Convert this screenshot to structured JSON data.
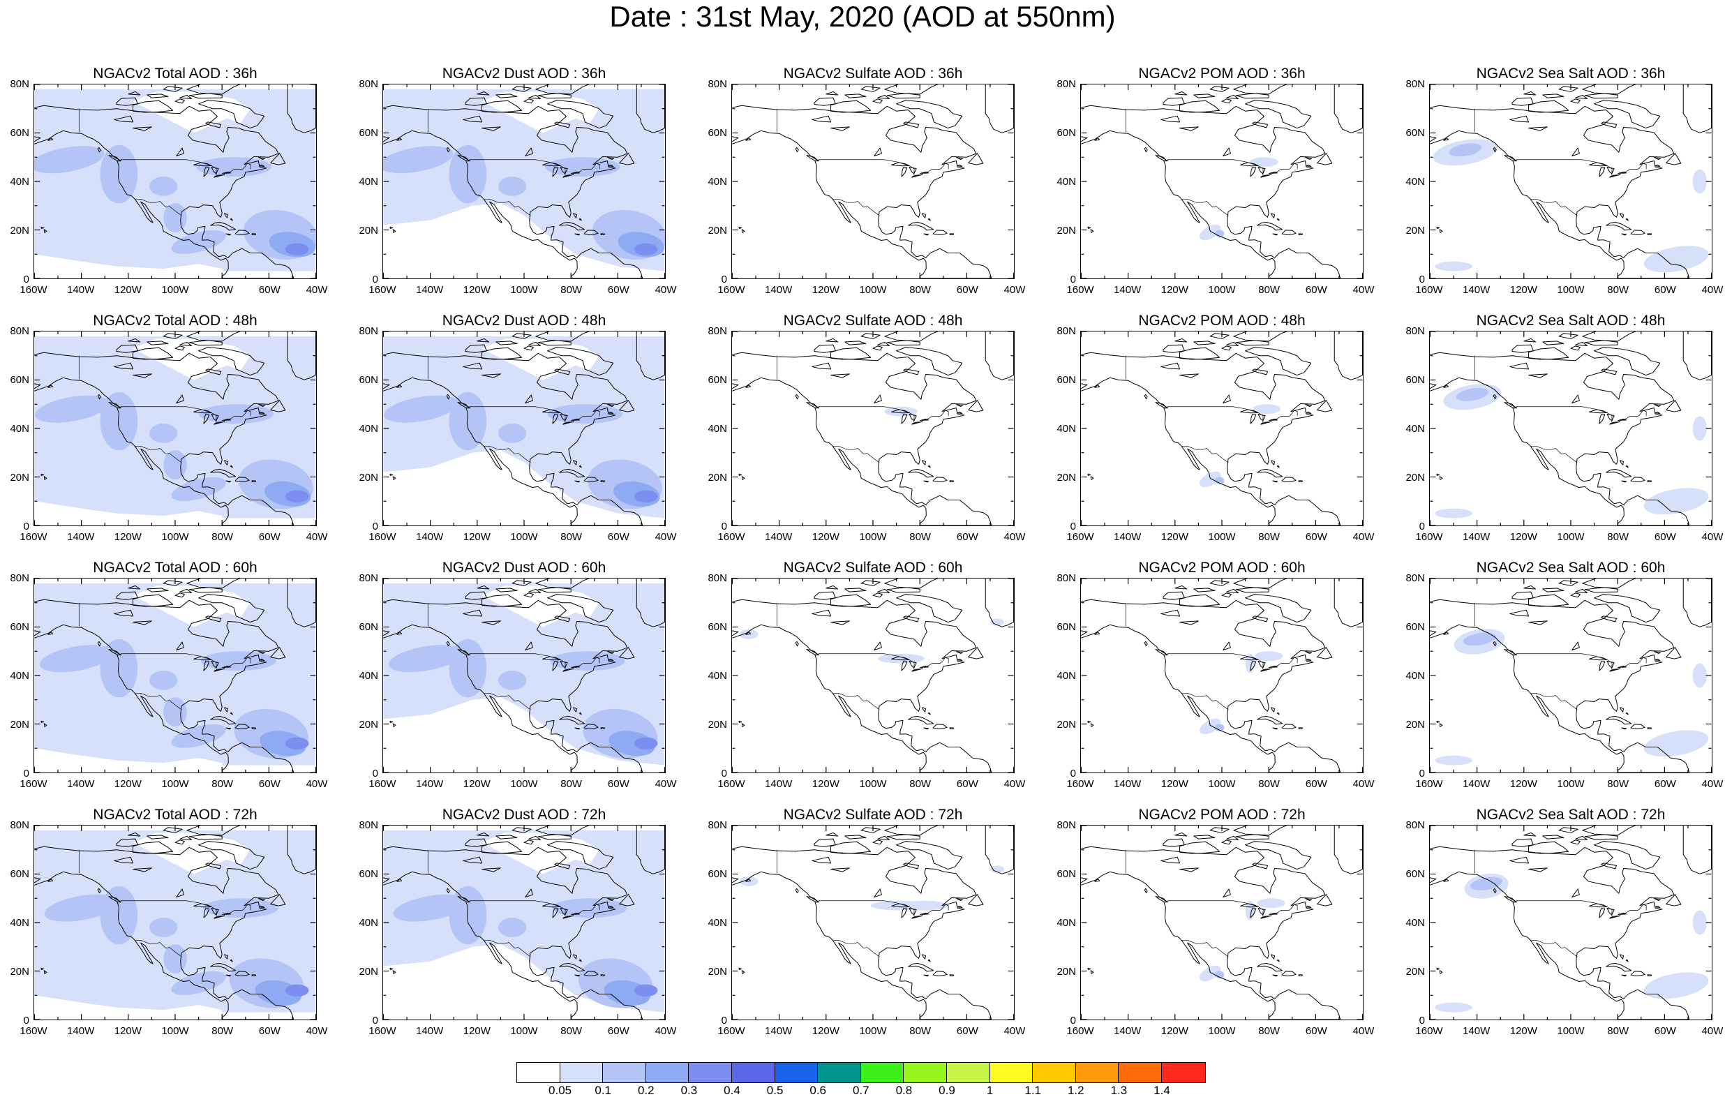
{
  "title": "Date : 31st May, 2020 (AOD at 550nm)",
  "axes": {
    "lat_labels": [
      "80N",
      "60N",
      "40N",
      "20N",
      "0"
    ],
    "lon_labels": [
      "160W",
      "140W",
      "120W",
      "100W",
      "80W",
      "60W",
      "40W"
    ],
    "lat_range": [
      0,
      80
    ],
    "lon_range": [
      -160,
      -40
    ]
  },
  "panels": [
    {
      "title": "NGACv2 Total AOD : 36h",
      "species": "total",
      "forecast_hour": 36
    },
    {
      "title": "NGACv2 Dust AOD : 36h",
      "species": "dust",
      "forecast_hour": 36
    },
    {
      "title": "NGACv2 Sulfate AOD : 36h",
      "species": "sulfate",
      "forecast_hour": 36
    },
    {
      "title": "NGACv2 POM AOD : 36h",
      "species": "pom",
      "forecast_hour": 36
    },
    {
      "title": "NGACv2 Sea Salt AOD : 36h",
      "species": "seasalt",
      "forecast_hour": 36
    },
    {
      "title": "NGACv2 Total AOD : 48h",
      "species": "total",
      "forecast_hour": 48
    },
    {
      "title": "NGACv2 Dust AOD : 48h",
      "species": "dust",
      "forecast_hour": 48
    },
    {
      "title": "NGACv2 Sulfate AOD : 48h",
      "species": "sulfate",
      "forecast_hour": 48
    },
    {
      "title": "NGACv2 POM AOD : 48h",
      "species": "pom",
      "forecast_hour": 48
    },
    {
      "title": "NGACv2 Sea Salt AOD : 48h",
      "species": "seasalt",
      "forecast_hour": 48
    },
    {
      "title": "NGACv2 Total AOD : 60h",
      "species": "total",
      "forecast_hour": 60
    },
    {
      "title": "NGACv2 Dust AOD : 60h",
      "species": "dust",
      "forecast_hour": 60
    },
    {
      "title": "NGACv2 Sulfate AOD : 60h",
      "species": "sulfate",
      "forecast_hour": 60
    },
    {
      "title": "NGACv2 POM AOD : 60h",
      "species": "pom",
      "forecast_hour": 60
    },
    {
      "title": "NGACv2 Sea Salt AOD : 60h",
      "species": "seasalt",
      "forecast_hour": 60
    },
    {
      "title": "NGACv2 Total AOD : 72h",
      "species": "total",
      "forecast_hour": 72
    },
    {
      "title": "NGACv2 Dust AOD : 72h",
      "species": "dust",
      "forecast_hour": 72
    },
    {
      "title": "NGACv2 Sulfate AOD : 72h",
      "species": "sulfate",
      "forecast_hour": 72
    },
    {
      "title": "NGACv2 POM AOD : 72h",
      "species": "pom",
      "forecast_hour": 72
    },
    {
      "title": "NGACv2 Sea Salt  AOD : 72h",
      "species": "seasalt",
      "forecast_hour": 72
    }
  ],
  "colorbar": {
    "colors": [
      "#ffffff",
      "#d6e0fb",
      "#b4c4f7",
      "#8eaaf3",
      "#7c8ff0",
      "#5b67e6",
      "#1a63ec",
      "#00968f",
      "#3ef01a",
      "#97f51e",
      "#c8f548",
      "#fffa22",
      "#ffc800",
      "#ff9a0c",
      "#ff6a0a",
      "#ff2a1e"
    ],
    "labels": [
      "0.05",
      "0.1",
      "0.2",
      "0.3",
      "0.4",
      "0.5",
      "0.6",
      "0.7",
      "0.8",
      "0.9",
      "1",
      "1.1",
      "1.2",
      "1.3",
      "1.4"
    ]
  }
}
